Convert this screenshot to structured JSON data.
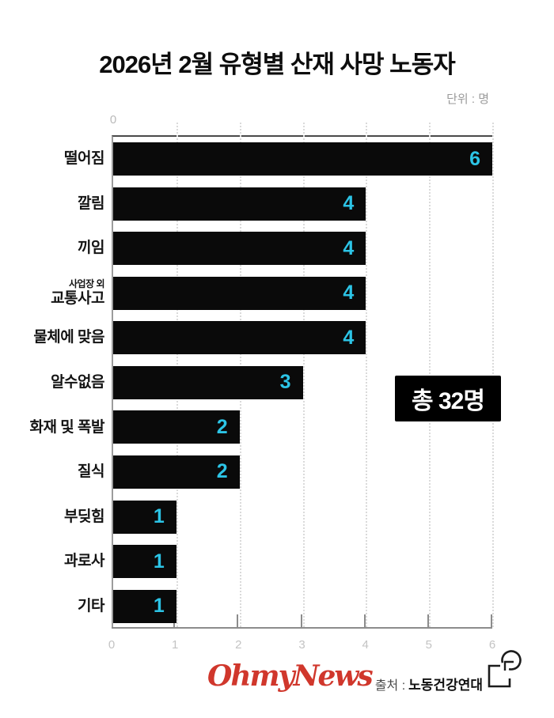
{
  "title": "2026년 2월 유형별 산재 사망 노동자",
  "unit_label": "단위 : 명",
  "chart_data": {
    "type": "bar",
    "orientation": "horizontal",
    "title": "2026년 2월 유형별 산재 사망 노동자",
    "categories": [
      "떨어짐",
      "깔림",
      "끼임",
      "사업장 외 교통사고",
      "물체에 맞음",
      "알수없음",
      "화재 및 폭발",
      "질식",
      "부딪힘",
      "과로사",
      "기타"
    ],
    "values": [
      6,
      4,
      4,
      4,
      4,
      3,
      2,
      2,
      1,
      1,
      1
    ],
    "rows": [
      {
        "label": "떨어짐",
        "value": 6
      },
      {
        "label": "깔림",
        "value": 4
      },
      {
        "label": "끼임",
        "value": 4
      },
      {
        "label": "교통사고",
        "sublabel": "사업장 외",
        "value": 4
      },
      {
        "label": "물체에 맞음",
        "value": 4
      },
      {
        "label": "알수없음",
        "value": 3
      },
      {
        "label": "화재 및 폭발",
        "value": 2
      },
      {
        "label": "질식",
        "value": 2
      },
      {
        "label": "부딪힘",
        "value": 1
      },
      {
        "label": "과로사",
        "value": 1
      },
      {
        "label": "기타",
        "value": 1
      }
    ],
    "xlim": [
      0,
      6
    ],
    "x_ticks": [
      "0",
      "1",
      "2",
      "3",
      "4",
      "5",
      "6"
    ],
    "top_zero_label": "0",
    "annotation": "총 32명",
    "bar_color": "#0a0a0a",
    "value_label_color": "#2cc4e6",
    "grid": "vertical-dotted",
    "legend": "none"
  },
  "footer": {
    "brand": "OhmyNews",
    "brand_color": "#d0372c",
    "source_prefix": "출처 :",
    "source_name": "노동건강연대",
    "logo_icon": "square-circle-logo-icon"
  }
}
